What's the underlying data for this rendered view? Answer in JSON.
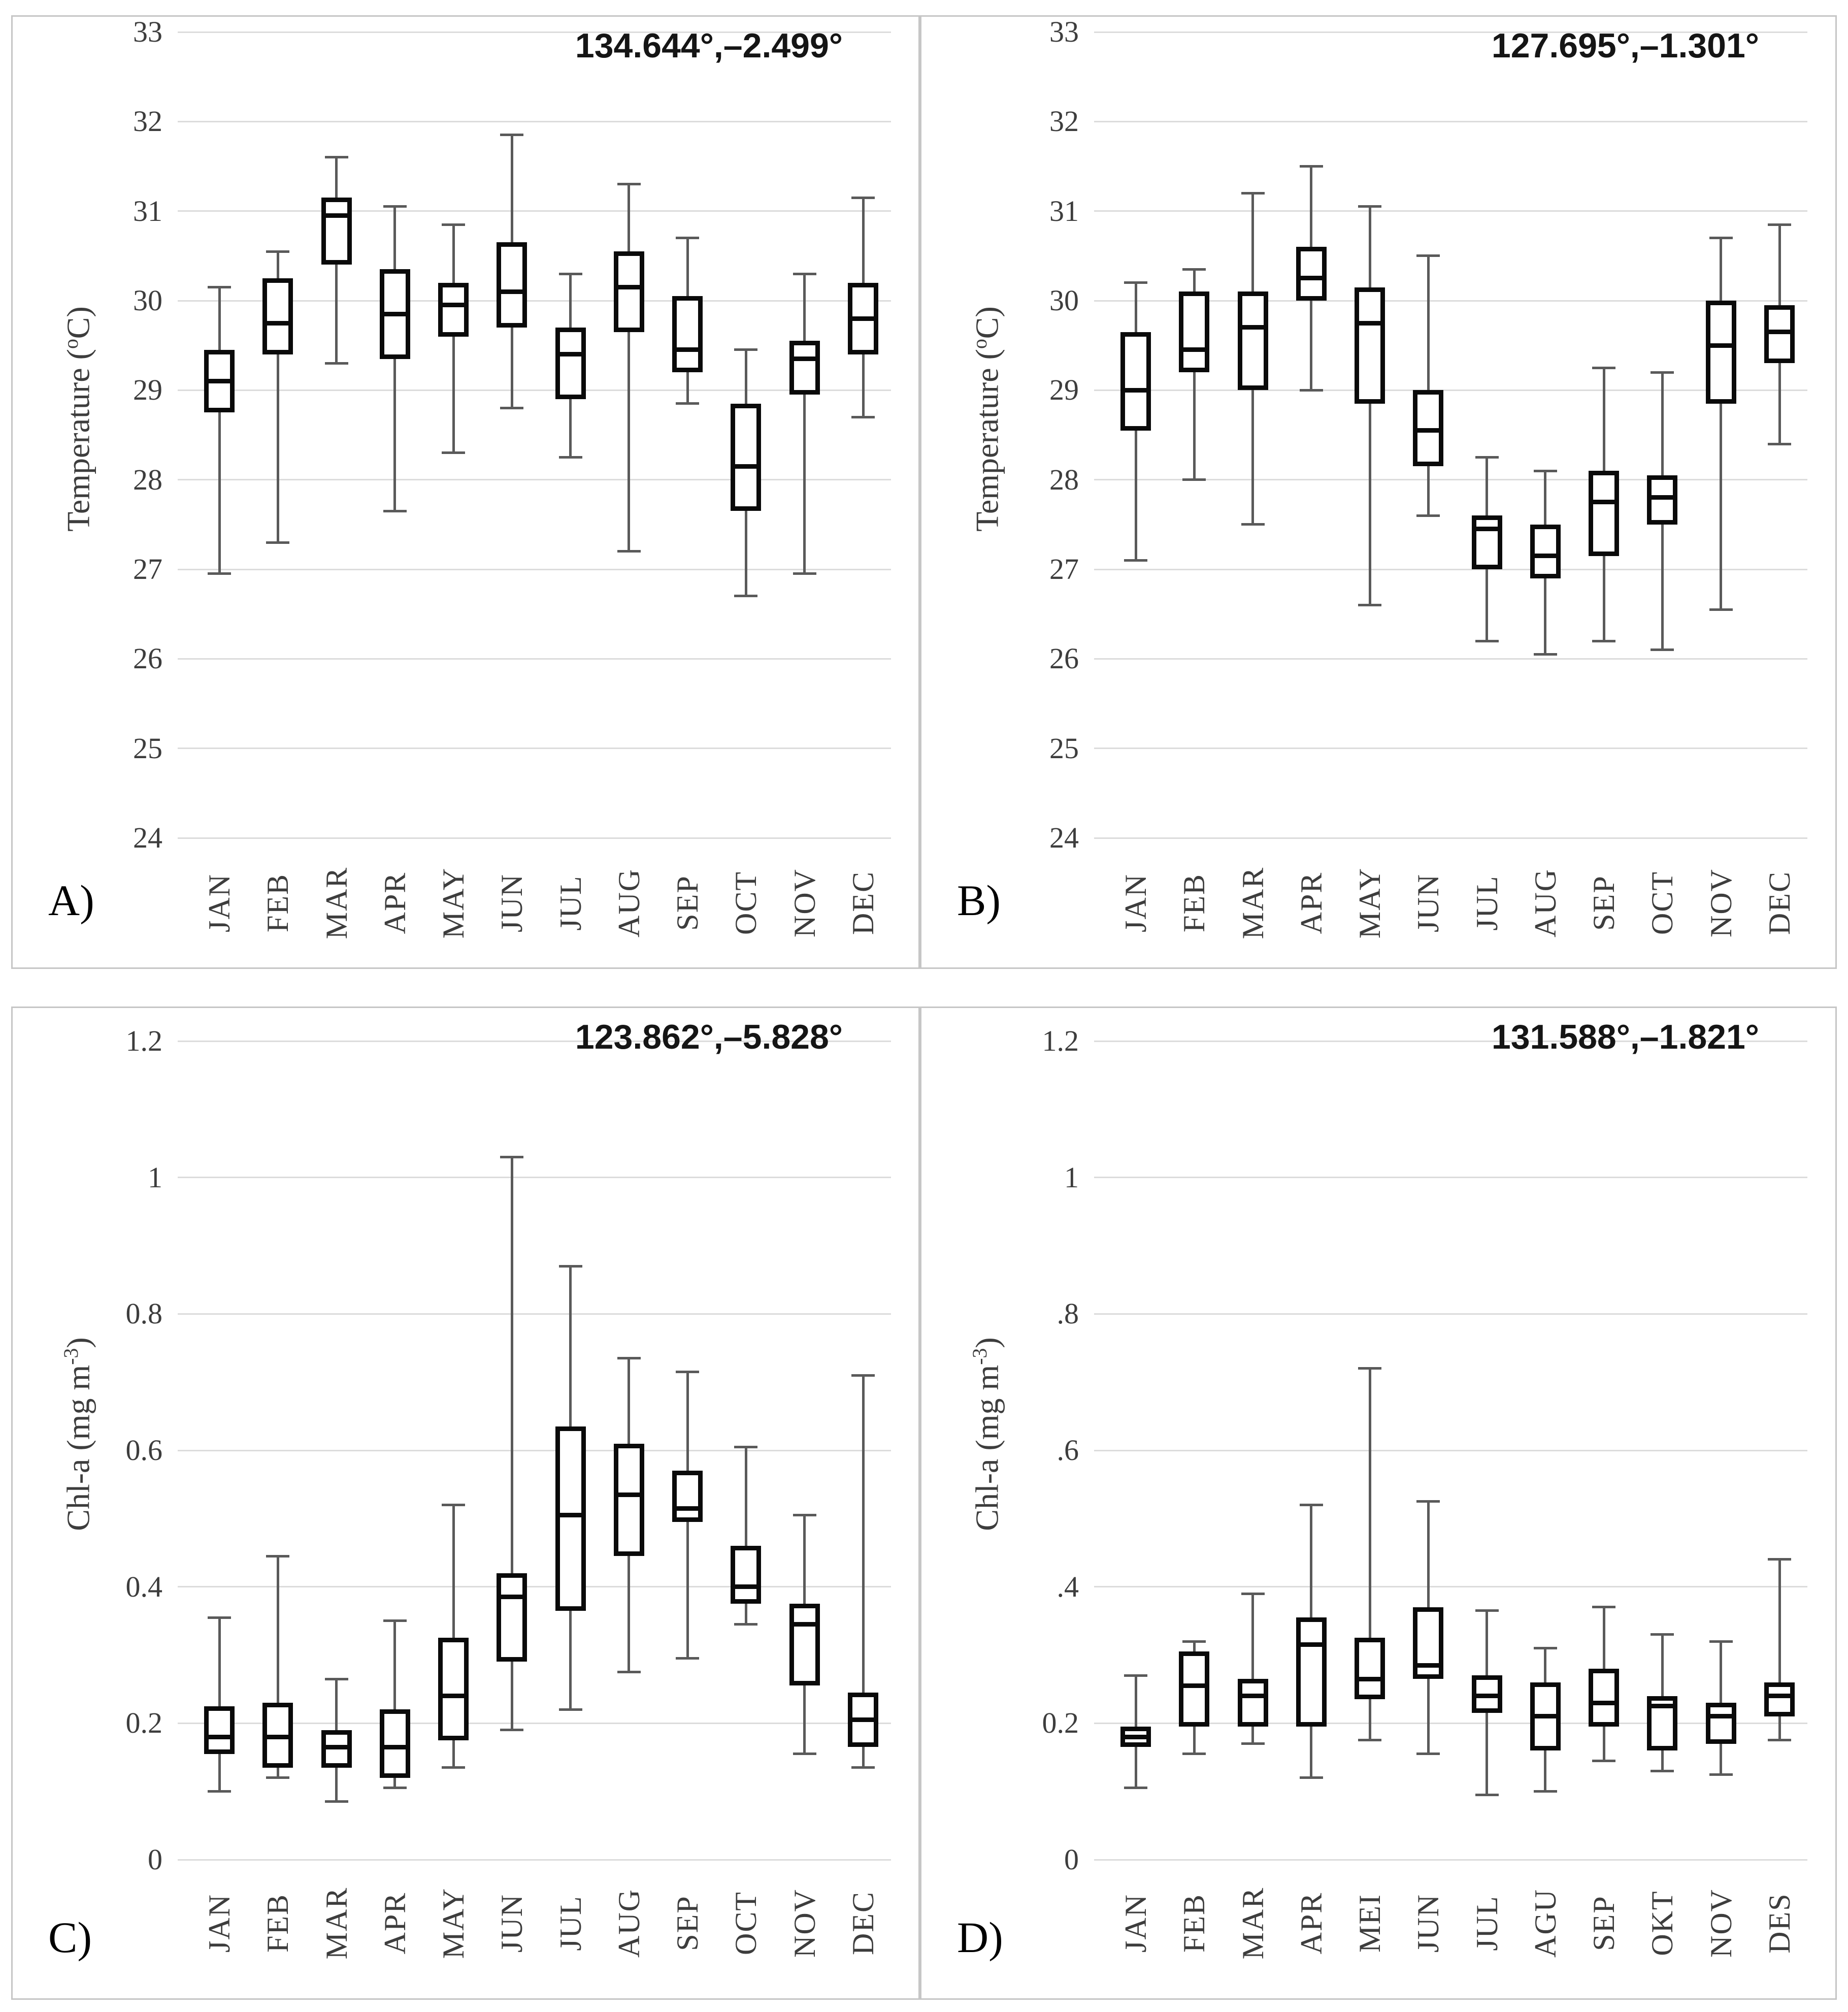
{
  "figure": {
    "background": "#ffffff",
    "panel_letters": [
      "A)",
      "B)",
      "C)",
      "D)"
    ]
  },
  "colors": {
    "box_border": "#0a0a0a",
    "median": "#0a0a0a",
    "whisker": "#5a5a5a",
    "gridline": "#dcdcdc",
    "panel_border": "#c6c6c6",
    "tick_text": "#3d3d3d",
    "title_text": "#151515"
  },
  "chart_data": [
    {
      "type": "boxplot",
      "id": "a",
      "panel_letter": "A)",
      "title": "134.644°,–2.499°",
      "ylabel": {
        "pre": "Temperature (",
        "sup": "o",
        "post": "C)"
      },
      "ylim": [
        24,
        33
      ],
      "grid": true,
      "yticks": [
        {
          "value": 33,
          "label": "33"
        },
        {
          "value": 32,
          "label": "32"
        },
        {
          "value": 31,
          "label": "31"
        },
        {
          "value": 30,
          "label": "30"
        },
        {
          "value": 29,
          "label": "29"
        },
        {
          "value": 28,
          "label": "28"
        },
        {
          "value": 27,
          "label": "27"
        },
        {
          "value": 26,
          "label": "26"
        },
        {
          "value": 25,
          "label": "25"
        },
        {
          "value": 24,
          "label": "24"
        }
      ],
      "categories": [
        "JAN",
        "FEB",
        "MAR",
        "APR",
        "MAY",
        "JUN",
        "JUL",
        "AUG",
        "SEP",
        "OCT",
        "NOV",
        "DEC"
      ],
      "series": [
        {
          "month": "JAN",
          "low": 26.95,
          "q1": 28.75,
          "median": 29.1,
          "q3": 29.45,
          "high": 30.15
        },
        {
          "month": "FEB",
          "low": 27.3,
          "q1": 29.4,
          "median": 29.75,
          "q3": 30.25,
          "high": 30.55
        },
        {
          "month": "MAR",
          "low": 29.3,
          "q1": 30.4,
          "median": 30.95,
          "q3": 31.15,
          "high": 31.6
        },
        {
          "month": "APR",
          "low": 27.65,
          "q1": 29.35,
          "median": 29.85,
          "q3": 30.35,
          "high": 31.05
        },
        {
          "month": "MAY",
          "low": 28.3,
          "q1": 29.6,
          "median": 29.95,
          "q3": 30.2,
          "high": 30.85
        },
        {
          "month": "JUN",
          "low": 28.8,
          "q1": 29.7,
          "median": 30.1,
          "q3": 30.65,
          "high": 31.85
        },
        {
          "month": "JUL",
          "low": 28.25,
          "q1": 28.9,
          "median": 29.4,
          "q3": 29.7,
          "high": 30.3
        },
        {
          "month": "AUG",
          "low": 27.2,
          "q1": 29.65,
          "median": 30.15,
          "q3": 30.55,
          "high": 31.3
        },
        {
          "month": "SEP",
          "low": 28.85,
          "q1": 29.2,
          "median": 29.45,
          "q3": 30.05,
          "high": 30.7
        },
        {
          "month": "OCT",
          "low": 26.7,
          "q1": 27.65,
          "median": 28.15,
          "q3": 28.85,
          "high": 29.45
        },
        {
          "month": "NOV",
          "low": 26.95,
          "q1": 28.95,
          "median": 29.35,
          "q3": 29.55,
          "high": 30.3
        },
        {
          "month": "DEC",
          "low": 28.7,
          "q1": 29.4,
          "median": 29.8,
          "q3": 30.2,
          "high": 31.15
        }
      ]
    },
    {
      "type": "boxplot",
      "id": "b",
      "panel_letter": "B)",
      "title": "127.695°,–1.301°",
      "ylabel": {
        "pre": "Temperature (",
        "sup": "o",
        "post": "C)"
      },
      "ylim": [
        24,
        33
      ],
      "grid": true,
      "yticks": [
        {
          "value": 33,
          "label": "33"
        },
        {
          "value": 32,
          "label": "32"
        },
        {
          "value": 31,
          "label": "31"
        },
        {
          "value": 30,
          "label": "30"
        },
        {
          "value": 29,
          "label": "29"
        },
        {
          "value": 28,
          "label": "28"
        },
        {
          "value": 27,
          "label": "27"
        },
        {
          "value": 26,
          "label": "26"
        },
        {
          "value": 25,
          "label": "25"
        },
        {
          "value": 24,
          "label": "24"
        }
      ],
      "categories": [
        "JAN",
        "FEB",
        "MAR",
        "APR",
        "MAY",
        "JUN",
        "JUL",
        "AUG",
        "SEP",
        "OCT",
        "NOV",
        "DEC"
      ],
      "series": [
        {
          "month": "JAN",
          "low": 27.1,
          "q1": 28.55,
          "median": 29.0,
          "q3": 29.65,
          "high": 30.2
        },
        {
          "month": "FEB",
          "low": 28.0,
          "q1": 29.2,
          "median": 29.45,
          "q3": 30.1,
          "high": 30.35
        },
        {
          "month": "MAR",
          "low": 27.5,
          "q1": 29.0,
          "median": 29.7,
          "q3": 30.1,
          "high": 31.2
        },
        {
          "month": "APR",
          "low": 29.0,
          "q1": 30.0,
          "median": 30.25,
          "q3": 30.6,
          "high": 31.5
        },
        {
          "month": "MAY",
          "low": 26.6,
          "q1": 28.85,
          "median": 29.75,
          "q3": 30.15,
          "high": 31.05
        },
        {
          "month": "JUN",
          "low": 27.6,
          "q1": 28.15,
          "median": 28.55,
          "q3": 29.0,
          "high": 30.5
        },
        {
          "month": "JUL",
          "low": 26.2,
          "q1": 27.0,
          "median": 27.45,
          "q3": 27.6,
          "high": 28.25
        },
        {
          "month": "AUG",
          "low": 26.05,
          "q1": 26.9,
          "median": 27.15,
          "q3": 27.5,
          "high": 28.1
        },
        {
          "month": "SEP",
          "low": 26.2,
          "q1": 27.15,
          "median": 27.75,
          "q3": 28.1,
          "high": 29.25
        },
        {
          "month": "OCT",
          "low": 26.1,
          "q1": 27.5,
          "median": 27.8,
          "q3": 28.05,
          "high": 29.2
        },
        {
          "month": "NOV",
          "low": 26.55,
          "q1": 28.85,
          "median": 29.5,
          "q3": 30.0,
          "high": 30.7
        },
        {
          "month": "DEC",
          "low": 28.4,
          "q1": 29.3,
          "median": 29.65,
          "q3": 29.95,
          "high": 30.85
        }
      ]
    },
    {
      "type": "boxplot",
      "id": "c",
      "panel_letter": "C)",
      "title": "123.862°,–5.828°",
      "ylabel": {
        "pre": "Chl-a (mg m",
        "sup": "-3",
        "post": ")"
      },
      "ylim": [
        0,
        1.2
      ],
      "grid": true,
      "yticks": [
        {
          "value": 1.2,
          "label": "1.2"
        },
        {
          "value": 1,
          "label": "1"
        },
        {
          "value": 0.8,
          "label": "0.8"
        },
        {
          "value": 0.6,
          "label": "0.6"
        },
        {
          "value": 0.4,
          "label": "0.4"
        },
        {
          "value": 0.2,
          "label": "0.2"
        },
        {
          "value": 0,
          "label": "0"
        }
      ],
      "categories": [
        "JAN",
        "FEB",
        "MAR",
        "APR",
        "MAY",
        "JUN",
        "JUL",
        "AUG",
        "SEP",
        "OCT",
        "NOV",
        "DEC"
      ],
      "series": [
        {
          "month": "JAN",
          "low": 0.1,
          "q1": 0.155,
          "median": 0.18,
          "q3": 0.225,
          "high": 0.355
        },
        {
          "month": "FEB",
          "low": 0.12,
          "q1": 0.135,
          "median": 0.18,
          "q3": 0.23,
          "high": 0.445
        },
        {
          "month": "MAR",
          "low": 0.085,
          "q1": 0.135,
          "median": 0.165,
          "q3": 0.19,
          "high": 0.265
        },
        {
          "month": "APR",
          "low": 0.105,
          "q1": 0.12,
          "median": 0.165,
          "q3": 0.22,
          "high": 0.35
        },
        {
          "month": "MAY",
          "low": 0.135,
          "q1": 0.175,
          "median": 0.24,
          "q3": 0.325,
          "high": 0.52
        },
        {
          "month": "JUN",
          "low": 0.19,
          "q1": 0.29,
          "median": 0.385,
          "q3": 0.42,
          "high": 1.03
        },
        {
          "month": "JUL",
          "low": 0.22,
          "q1": 0.365,
          "median": 0.505,
          "q3": 0.635,
          "high": 0.87
        },
        {
          "month": "AUG",
          "low": 0.275,
          "q1": 0.445,
          "median": 0.535,
          "q3": 0.61,
          "high": 0.735
        },
        {
          "month": "SEP",
          "low": 0.295,
          "q1": 0.495,
          "median": 0.515,
          "q3": 0.57,
          "high": 0.715
        },
        {
          "month": "OCT",
          "low": 0.345,
          "q1": 0.375,
          "median": 0.4,
          "q3": 0.46,
          "high": 0.605
        },
        {
          "month": "NOV",
          "low": 0.155,
          "q1": 0.255,
          "median": 0.345,
          "q3": 0.375,
          "high": 0.505
        },
        {
          "month": "DEC",
          "low": 0.135,
          "q1": 0.165,
          "median": 0.205,
          "q3": 0.245,
          "high": 0.71
        }
      ]
    },
    {
      "type": "boxplot",
      "id": "d",
      "panel_letter": "D)",
      "title": "131.588°,–1.821°",
      "ylabel": {
        "pre": "Chl-a (mg m",
        "sup": "-3",
        "post": ")"
      },
      "ylim": [
        0,
        1.2
      ],
      "grid": true,
      "yticks": [
        {
          "value": 1.2,
          "label": "1.2"
        },
        {
          "value": 1,
          "label": "1"
        },
        {
          "value": 0.8,
          "label": ".8"
        },
        {
          "value": 0.6,
          "label": ".6"
        },
        {
          "value": 0.4,
          "label": ".4"
        },
        {
          "value": 0.2,
          "label": "0.2"
        },
        {
          "value": 0,
          "label": "0"
        }
      ],
      "categories": [
        "JAN",
        "FEB",
        "MAR",
        "APR",
        "MEI",
        "JUN",
        "JUL",
        "AGU",
        "SEP",
        "OKT",
        "NOV",
        "DES"
      ],
      "series": [
        {
          "month": "JAN",
          "low": 0.105,
          "q1": 0.165,
          "median": 0.18,
          "q3": 0.195,
          "high": 0.27
        },
        {
          "month": "FEB",
          "low": 0.155,
          "q1": 0.195,
          "median": 0.255,
          "q3": 0.305,
          "high": 0.32
        },
        {
          "month": "MAR",
          "low": 0.17,
          "q1": 0.195,
          "median": 0.24,
          "q3": 0.265,
          "high": 0.39
        },
        {
          "month": "APR",
          "low": 0.12,
          "q1": 0.195,
          "median": 0.315,
          "q3": 0.355,
          "high": 0.52
        },
        {
          "month": "MEI",
          "low": 0.175,
          "q1": 0.235,
          "median": 0.265,
          "q3": 0.325,
          "high": 0.72
        },
        {
          "month": "JUN",
          "low": 0.155,
          "q1": 0.265,
          "median": 0.285,
          "q3": 0.37,
          "high": 0.525
        },
        {
          "month": "JUL",
          "low": 0.095,
          "q1": 0.215,
          "median": 0.24,
          "q3": 0.27,
          "high": 0.365
        },
        {
          "month": "AGU",
          "low": 0.1,
          "q1": 0.16,
          "median": 0.21,
          "q3": 0.26,
          "high": 0.31
        },
        {
          "month": "SEP",
          "low": 0.145,
          "q1": 0.195,
          "median": 0.23,
          "q3": 0.28,
          "high": 0.37
        },
        {
          "month": "OKT",
          "low": 0.13,
          "q1": 0.16,
          "median": 0.225,
          "q3": 0.24,
          "high": 0.33
        },
        {
          "month": "NOV",
          "low": 0.125,
          "q1": 0.17,
          "median": 0.21,
          "q3": 0.23,
          "high": 0.32
        },
        {
          "month": "DES",
          "low": 0.175,
          "q1": 0.21,
          "median": 0.24,
          "q3": 0.26,
          "high": 0.44
        }
      ]
    }
  ]
}
